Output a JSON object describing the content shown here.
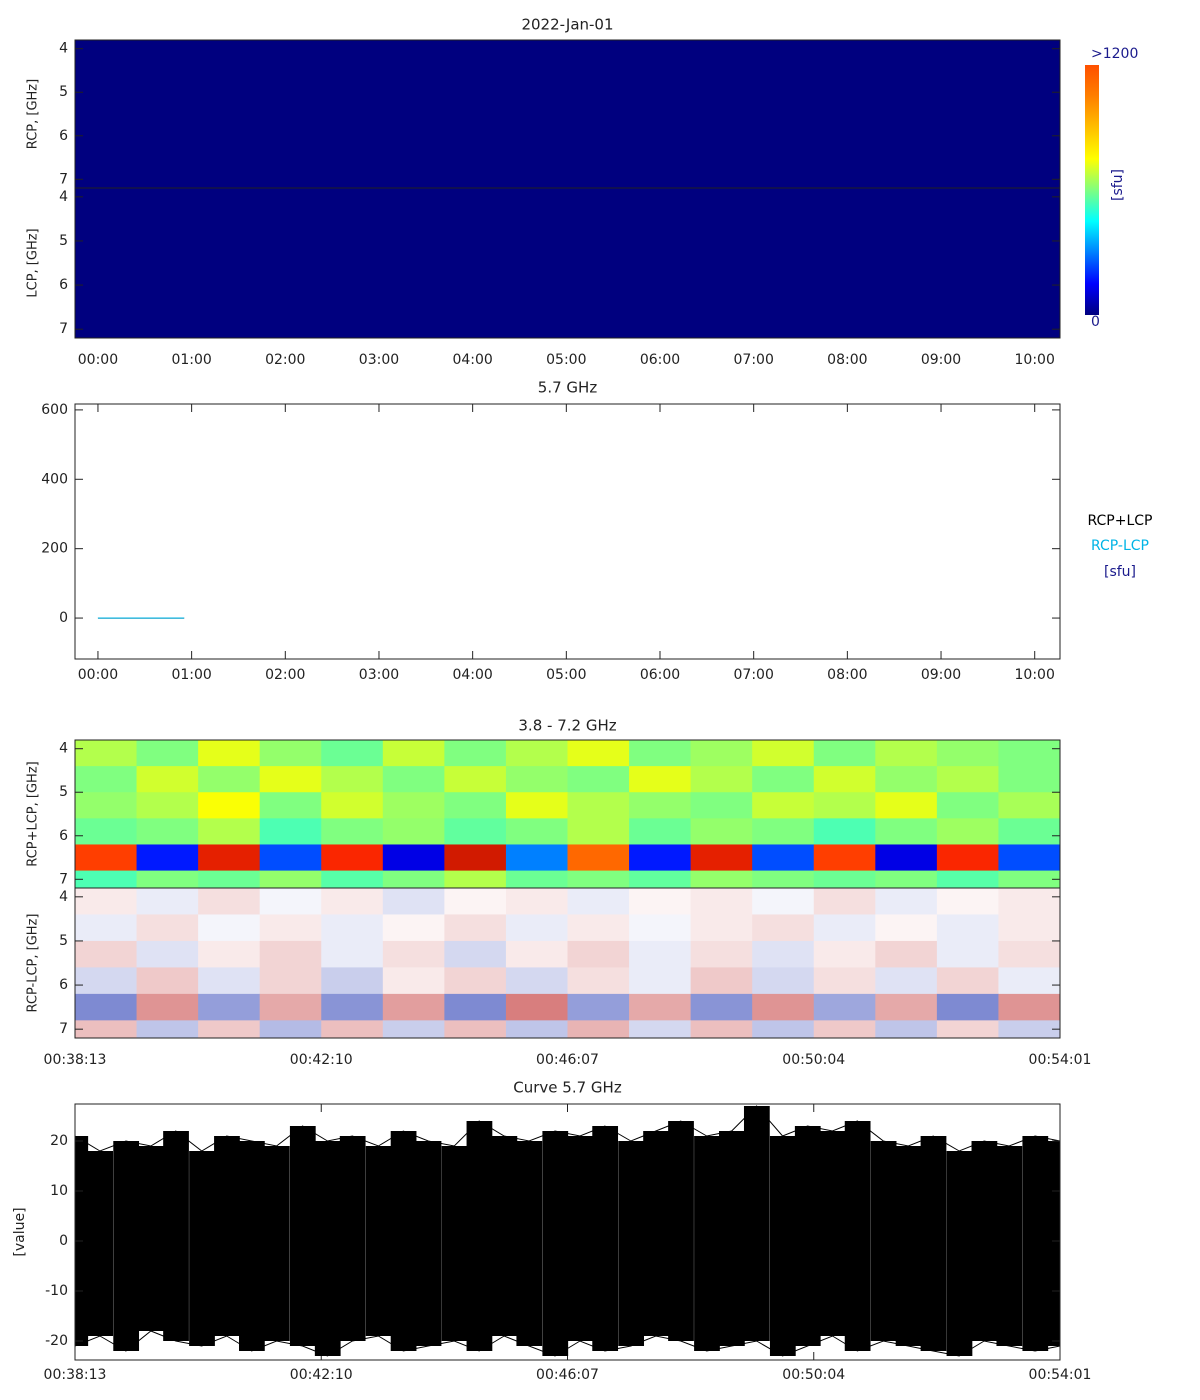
{
  "chart_data": [
    {
      "type": "heatmap",
      "title": "2022-Jan-01",
      "xlim": [
        -0.245,
        10.27
      ],
      "xticks": [
        {
          "value": 0,
          "label": "00:00"
        },
        {
          "value": 1,
          "label": "01:00"
        },
        {
          "value": 2,
          "label": "02:00"
        },
        {
          "value": 3,
          "label": "03:00"
        },
        {
          "value": 4,
          "label": "04:00"
        },
        {
          "value": 5,
          "label": "05:00"
        },
        {
          "value": 6,
          "label": "06:00"
        },
        {
          "value": 7,
          "label": "07:00"
        },
        {
          "value": 8,
          "label": "08:00"
        },
        {
          "value": 9,
          "label": "09:00"
        },
        {
          "value": 10,
          "label": "10:00"
        }
      ],
      "xbins": [
        -0.245,
        10.27
      ],
      "colormap": "rainbow",
      "colorbar": {
        "label": "[sfu]",
        "clim": [
          0,
          1200
        ],
        "ticks": [
          {
            "value": 1200,
            "label": ">1200"
          },
          0
        ]
      },
      "panels": [
        {
          "ylabel": "RCP, [GHz]",
          "ylim": [
            3.8,
            7.2
          ],
          "yticks": [
            4,
            5,
            6,
            7
          ],
          "ybins": [
            3.8,
            7.2
          ],
          "values": [
            [
              0
            ]
          ]
        },
        {
          "ylabel": "LCP, [GHz]",
          "ylim": [
            3.8,
            7.2
          ],
          "yticks": [
            4,
            5,
            6,
            7
          ],
          "ybins": [
            3.8,
            7.2
          ],
          "values": [
            [
              0
            ]
          ]
        }
      ]
    },
    {
      "type": "line",
      "title": "5.7 GHz",
      "xlim": [
        -0.245,
        10.27
      ],
      "xticks": [
        {
          "value": 0,
          "label": "00:00"
        },
        {
          "value": 1,
          "label": "01:00"
        },
        {
          "value": 2,
          "label": "02:00"
        },
        {
          "value": 3,
          "label": "03:00"
        },
        {
          "value": 4,
          "label": "04:00"
        },
        {
          "value": 5,
          "label": "05:00"
        },
        {
          "value": 6,
          "label": "06:00"
        },
        {
          "value": 7,
          "label": "07:00"
        },
        {
          "value": 8,
          "label": "08:00"
        },
        {
          "value": 9,
          "label": "09:00"
        },
        {
          "value": 10,
          "label": "10:00"
        }
      ],
      "ylim": [
        -118,
        617
      ],
      "yticks": [
        0,
        200,
        400,
        600
      ],
      "unit": "[sfu]",
      "series": [
        {
          "name": "RCP+LCP",
          "color": "#000000",
          "x": [
            0,
            0.92
          ],
          "values": [
            0,
            0
          ]
        },
        {
          "name": "RCP-LCP",
          "color": "#00b4e6",
          "x": [
            0,
            0.92
          ],
          "values": [
            0,
            0
          ]
        }
      ]
    },
    {
      "type": "heatmap",
      "title": "3.8 - 7.2 GHz",
      "xlim": [
        2293,
        3241
      ],
      "xticks": [
        {
          "value": 2293,
          "label": "00:38:13"
        },
        {
          "value": 2530,
          "label": "00:42:10"
        },
        {
          "value": 2767,
          "label": "00:46:07"
        },
        {
          "value": 3004,
          "label": "00:50:04"
        },
        {
          "value": 3241,
          "label": "00:54:01"
        }
      ],
      "xbins": [
        2293,
        2352.25,
        2411.5,
        2470.75,
        2530,
        2589.25,
        2648.5,
        2707.75,
        2767,
        2826.25,
        2885.5,
        2944.75,
        3004,
        3063.25,
        3122.5,
        3181.75,
        3241
      ],
      "panels": [
        {
          "ylabel": "RCP+LCP, [GHz]",
          "ylim": [
            3.8,
            7.2
          ],
          "yticks": [
            4,
            5,
            6,
            7
          ],
          "ybins": [
            3.8,
            4.4,
            5.0,
            5.6,
            6.2,
            6.8,
            7.2
          ],
          "colormap": "rainbow",
          "values": [
            [
              0.55,
              0.5,
              0.6,
              0.52,
              0.48,
              0.57,
              0.5,
              0.55,
              0.6,
              0.5,
              0.53,
              0.58,
              0.5,
              0.55,
              0.52,
              0.5
            ],
            [
              0.5,
              0.58,
              0.52,
              0.6,
              0.55,
              0.5,
              0.57,
              0.52,
              0.5,
              0.6,
              0.55,
              0.5,
              0.58,
              0.52,
              0.55,
              0.5
            ],
            [
              0.52,
              0.55,
              0.62,
              0.5,
              0.58,
              0.53,
              0.5,
              0.6,
              0.55,
              0.52,
              0.5,
              0.57,
              0.55,
              0.6,
              0.5,
              0.54
            ],
            [
              0.48,
              0.5,
              0.55,
              0.45,
              0.5,
              0.52,
              0.47,
              0.5,
              0.55,
              0.48,
              0.52,
              0.5,
              0.45,
              0.5,
              0.53,
              0.48
            ],
            [
              0.85,
              0.15,
              0.9,
              0.2,
              0.88,
              0.1,
              0.92,
              0.25,
              0.8,
              0.15,
              0.9,
              0.2,
              0.85,
              0.1,
              0.88,
              0.2
            ],
            [
              0.45,
              0.5,
              0.48,
              0.52,
              0.46,
              0.5,
              0.55,
              0.48,
              0.5,
              0.47,
              0.52,
              0.5,
              0.48,
              0.5,
              0.46,
              0.5
            ]
          ]
        },
        {
          "ylabel": "RCP-LCP, [GHz]",
          "ylim": [
            3.8,
            7.2
          ],
          "yticks": [
            4,
            5,
            6,
            7
          ],
          "ybins": [
            3.8,
            4.4,
            5.0,
            5.6,
            6.2,
            6.8,
            7.2
          ],
          "colormap": "diverging",
          "values": [
            [
              0.1,
              -0.1,
              0.15,
              -0.05,
              0.1,
              -0.15,
              0.05,
              0.1,
              -0.1,
              0.05,
              0.1,
              -0.05,
              0.15,
              -0.1,
              0.05,
              0.1
            ],
            [
              -0.1,
              0.15,
              -0.05,
              0.1,
              -0.1,
              0.05,
              0.15,
              -0.1,
              0.1,
              -0.05,
              0.1,
              0.15,
              -0.1,
              0.05,
              -0.1,
              0.1
            ],
            [
              0.2,
              -0.15,
              0.1,
              0.2,
              -0.1,
              0.15,
              -0.2,
              0.1,
              0.2,
              -0.1,
              0.15,
              -0.15,
              0.1,
              0.2,
              -0.1,
              0.15
            ],
            [
              -0.2,
              0.25,
              -0.15,
              0.2,
              -0.25,
              0.1,
              0.2,
              -0.2,
              0.15,
              -0.1,
              0.25,
              -0.2,
              0.15,
              -0.15,
              0.2,
              -0.1
            ],
            [
              -0.6,
              0.5,
              -0.5,
              0.4,
              -0.55,
              0.45,
              -0.6,
              0.6,
              -0.5,
              0.4,
              -0.55,
              0.5,
              -0.45,
              0.4,
              -0.6,
              0.5
            ],
            [
              0.3,
              -0.3,
              0.25,
              -0.35,
              0.3,
              -0.25,
              0.3,
              -0.3,
              0.35,
              -0.2,
              0.3,
              -0.3,
              0.25,
              -0.3,
              0.2,
              -0.25
            ]
          ]
        }
      ]
    },
    {
      "type": "band",
      "title": "Curve 5.7 GHz",
      "ylabel": "[value]",
      "color": "#000000",
      "xlim": [
        2293,
        3241
      ],
      "xticks": [
        {
          "value": 2293,
          "label": "00:38:13"
        },
        {
          "value": 2530,
          "label": "00:42:10"
        },
        {
          "value": 2767,
          "label": "00:46:07"
        },
        {
          "value": 3004,
          "label": "00:50:04"
        },
        {
          "value": 3241,
          "label": "00:54:01"
        }
      ],
      "ylim": [
        -23.8,
        27.4
      ],
      "yticks": [
        -20,
        -10,
        0,
        10,
        20
      ],
      "x": [
        2293,
        2317,
        2342,
        2366,
        2390,
        2415,
        2439,
        2463,
        2487,
        2512,
        2536,
        2560,
        2585,
        2609,
        2633,
        2658,
        2682,
        2706,
        2730,
        2755,
        2779,
        2803,
        2828,
        2852,
        2876,
        2901,
        2925,
        2949,
        2974,
        2998,
        3022,
        3046,
        3071,
        3095,
        3119,
        3144,
        3168,
        3192,
        3217,
        3241
      ],
      "upper": [
        21,
        18,
        20,
        19,
        22,
        18,
        21,
        20,
        19,
        23,
        20,
        21,
        19,
        22,
        20,
        19,
        24,
        21,
        20,
        22,
        21,
        23,
        20,
        22,
        24,
        21,
        22,
        27,
        21,
        23,
        22,
        24,
        20,
        19,
        21,
        18,
        20,
        19,
        21,
        20
      ],
      "lower": [
        -21,
        -19,
        -22,
        -18,
        -20,
        -21,
        -19,
        -22,
        -20,
        -21,
        -23,
        -20,
        -19,
        -22,
        -21,
        -20,
        -22,
        -19,
        -21,
        -23,
        -20,
        -22,
        -21,
        -19,
        -20,
        -22,
        -21,
        -20,
        -23,
        -21,
        -19,
        -22,
        -20,
        -21,
        -22,
        -23,
        -20,
        -21,
        -22,
        -21
      ]
    }
  ]
}
